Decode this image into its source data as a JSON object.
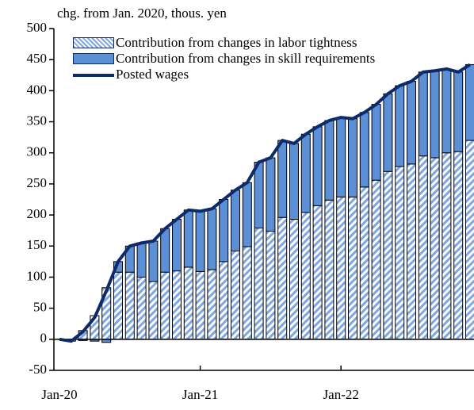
{
  "chart_data": {
    "type": "bar",
    "stacked": true,
    "y_label": "chg. from Jan. 2020, thous. yen",
    "categories": [
      "Jan-20",
      null,
      null,
      null,
      null,
      null,
      null,
      null,
      null,
      null,
      null,
      null,
      "Jan-21",
      null,
      null,
      null,
      null,
      null,
      null,
      null,
      null,
      null,
      null,
      null,
      "Jan-22",
      null,
      null,
      null,
      null,
      null,
      null,
      null,
      null,
      null,
      null,
      null
    ],
    "series": [
      {
        "name": "Contribution from changes in labor tightness",
        "type": "bar",
        "pattern": "hatch",
        "color": "#7fa6e0",
        "values": [
          0,
          -3,
          14,
          38,
          83,
          108,
          108,
          100,
          93,
          108,
          110,
          116,
          109,
          112,
          125,
          142,
          149,
          179,
          174,
          196,
          193,
          204,
          215,
          224,
          229,
          229,
          245,
          256,
          270,
          278,
          282,
          295,
          292,
          300,
          302,
          320
        ]
      },
      {
        "name": "Contribution from changes in skill requirements",
        "type": "bar",
        "color": "#5b8fd6",
        "values": [
          0,
          0,
          -2,
          -3,
          -5,
          17,
          42,
          55,
          65,
          70,
          83,
          92,
          97,
          98,
          100,
          98,
          103,
          106,
          118,
          124,
          122,
          126,
          127,
          128,
          128,
          126,
          120,
          122,
          125,
          130,
          133,
          135,
          140,
          135,
          128,
          122
        ]
      },
      {
        "name": "Posted wages",
        "type": "line",
        "color": "#0d2a6b",
        "values": [
          0,
          -3,
          12,
          35,
          78,
          125,
          150,
          155,
          158,
          178,
          193,
          208,
          206,
          210,
          225,
          240,
          252,
          285,
          292,
          320,
          315,
          330,
          342,
          352,
          357,
          355,
          365,
          378,
          395,
          408,
          415,
          430,
          432,
          435,
          430,
          442
        ]
      }
    ],
    "ylim": [
      -50,
      500
    ],
    "yticks": [
      -50,
      0,
      50,
      100,
      150,
      200,
      250,
      300,
      350,
      400,
      450,
      500
    ],
    "legend": "upper left"
  }
}
